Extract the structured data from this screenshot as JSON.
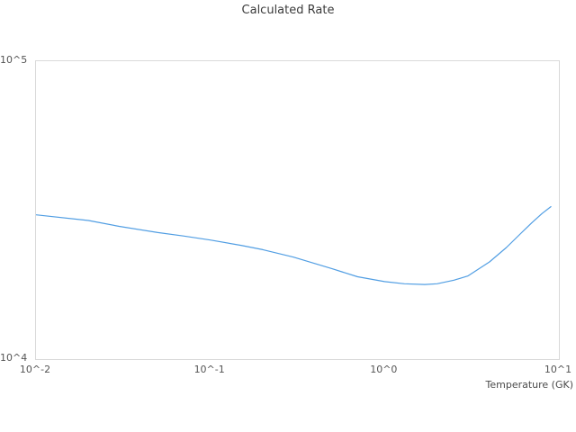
{
  "title": "Calculated Rate",
  "colors": {
    "line": "#519ee3",
    "plot_border": "#d9d9d9",
    "title_text": "#3b3b3b",
    "tick_text": "#545454",
    "background": "#ffffff"
  },
  "chart_data": {
    "type": "line",
    "title": "Calculated Rate",
    "xlabel": "Temperature (GK)",
    "ylabel": "",
    "xscale": "log",
    "yscale": "log",
    "xlim": [
      0.01,
      10
    ],
    "ylim": [
      10000,
      100000
    ],
    "grid": false,
    "legend_position": "none",
    "x_ticks": [
      {
        "value": 0.01,
        "label": "10^-2"
      },
      {
        "value": 0.1,
        "label": "10^-1"
      },
      {
        "value": 1,
        "label": "10^0"
      },
      {
        "value": 10,
        "label": "10^1"
      }
    ],
    "y_ticks": [
      {
        "value": 10000,
        "label": "10^4"
      },
      {
        "value": 100000,
        "label": "10^5"
      }
    ],
    "series": [
      {
        "name": "Calculated Rate",
        "color": "#519ee3",
        "x": [
          0.01,
          0.02,
          0.03,
          0.05,
          0.07,
          0.1,
          0.15,
          0.2,
          0.3,
          0.5,
          0.7,
          1.0,
          1.3,
          1.7,
          2.0,
          2.5,
          3.0,
          4.0,
          5.0,
          6.0,
          7.0,
          8.0,
          9.0
        ],
        "y": [
          30500,
          29200,
          27900,
          26600,
          25900,
          25100,
          24100,
          23300,
          22000,
          20100,
          18900,
          18200,
          17900,
          17800,
          17900,
          18400,
          19000,
          21200,
          23700,
          26300,
          28700,
          30800,
          32500
        ]
      }
    ]
  }
}
